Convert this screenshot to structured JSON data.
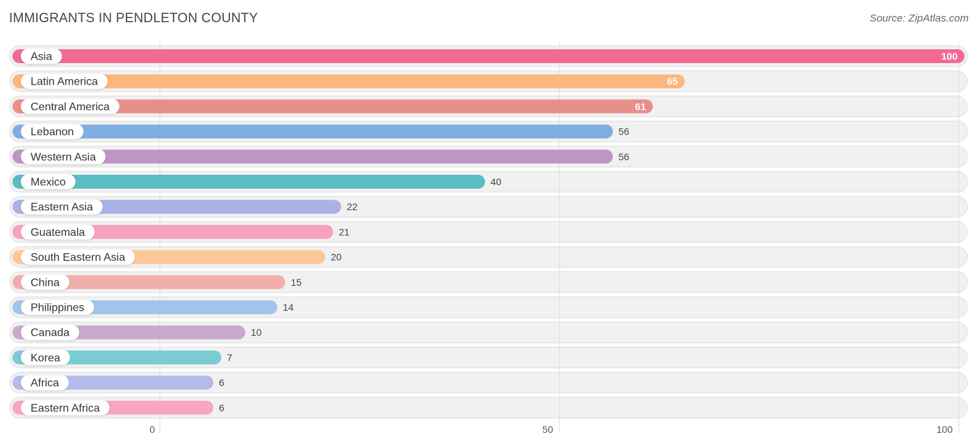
{
  "header": {
    "title": "IMMIGRANTS IN PENDLETON COUNTY",
    "source": "Source: ZipAtlas.com"
  },
  "chart_data": {
    "type": "bar",
    "orientation": "horizontal",
    "title": "IMMIGRANTS IN PENDLETON COUNTY",
    "categories": [
      "Asia",
      "Latin America",
      "Central America",
      "Lebanon",
      "Western Asia",
      "Mexico",
      "Eastern Asia",
      "Guatemala",
      "South Eastern Asia",
      "China",
      "Philippines",
      "Canada",
      "Korea",
      "Africa",
      "Eastern Africa"
    ],
    "values": [
      100,
      65,
      61,
      56,
      56,
      40,
      22,
      21,
      20,
      15,
      14,
      10,
      7,
      6,
      6
    ],
    "colors": [
      "#f06a94",
      "#fbb77c",
      "#e88f8c",
      "#7eaee1",
      "#be95c5",
      "#5bbcc4",
      "#a9b2e7",
      "#f6a1bd",
      "#fcc798",
      "#f0aeac",
      "#a1c4ea",
      "#cba9cc",
      "#79ccd1",
      "#b3bbea",
      "#f7a5c1"
    ],
    "xlim": [
      0,
      100
    ],
    "xticks": [
      0,
      50,
      100
    ],
    "grid": true,
    "legend": "none"
  }
}
